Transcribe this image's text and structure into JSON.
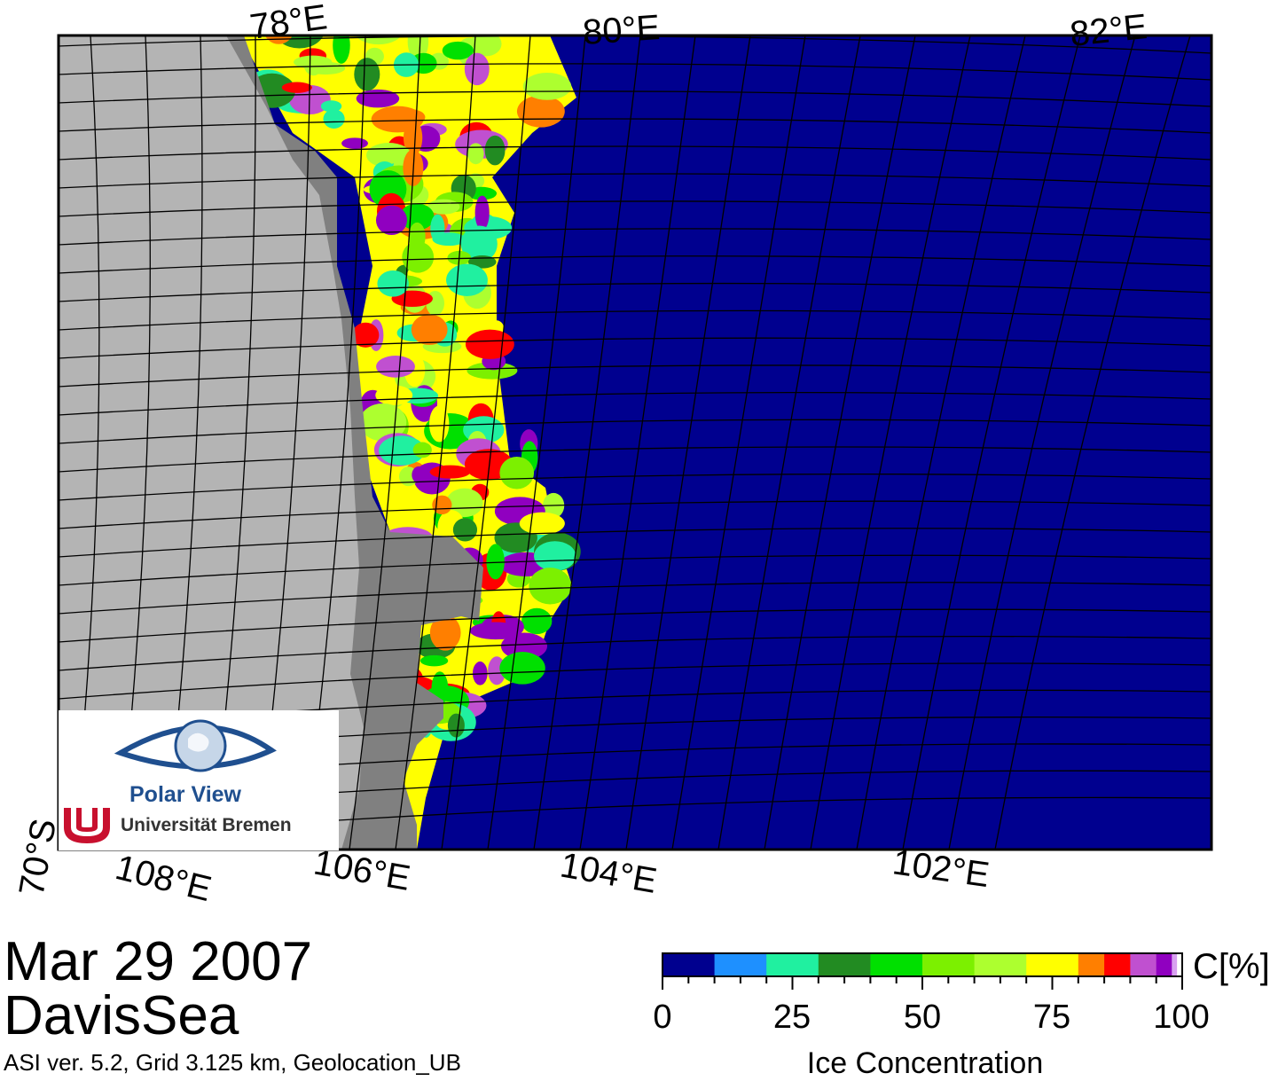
{
  "map": {
    "top_labels": [
      "78°E",
      "80°E",
      "82°E"
    ],
    "bottom_labels": [
      "108°E",
      "106°E",
      "104°E",
      "102°E"
    ],
    "corner_label": "70°S",
    "land_color": "#b4b4b4",
    "shelf_color": "#808080",
    "ocean_color": "#00008f",
    "grid_color": "#000000"
  },
  "logo": {
    "name": "Polar View",
    "institution": "Universität Bremen",
    "eye_color": "#1f4f8f",
    "emblem_color": "#c8102e"
  },
  "date": "Mar 29 2007",
  "region": "DavisSea",
  "info": "ASI ver. 5.2,  Grid 3.125 km, Geolocation_UB",
  "colorbar": {
    "title": "Ice Concentration",
    "unit": "C[%]",
    "tick_labels": [
      "0",
      "25",
      "50",
      "75",
      "100"
    ],
    "tick_values": [
      0,
      25,
      50,
      75,
      100
    ],
    "bins": [
      {
        "from": 0,
        "to": 10,
        "color": "#00008f"
      },
      {
        "from": 10,
        "to": 20,
        "color": "#1e90ff"
      },
      {
        "from": 20,
        "to": 30,
        "color": "#20f0a0"
      },
      {
        "from": 30,
        "to": 40,
        "color": "#228b22"
      },
      {
        "from": 40,
        "to": 50,
        "color": "#00e000"
      },
      {
        "from": 50,
        "to": 60,
        "color": "#7cf000"
      },
      {
        "from": 60,
        "to": 70,
        "color": "#adff2f"
      },
      {
        "from": 70,
        "to": 80,
        "color": "#ffff00"
      },
      {
        "from": 80,
        "to": 85,
        "color": "#ff7f00"
      },
      {
        "from": 85,
        "to": 90,
        "color": "#ff0000"
      },
      {
        "from": 90,
        "to": 95,
        "color": "#c050d0"
      },
      {
        "from": 95,
        "to": 98,
        "color": "#9000c0"
      },
      {
        "from": 98,
        "to": 99,
        "color": "#d8a0f0"
      },
      {
        "from": 99,
        "to": 100,
        "color": "#ffffff"
      }
    ]
  }
}
